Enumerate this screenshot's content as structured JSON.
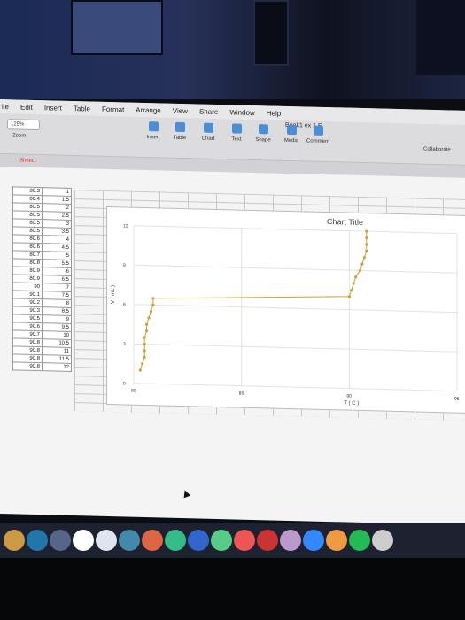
{
  "menu": [
    "ile",
    "Edit",
    "Insert",
    "Table",
    "Format",
    "Arrange",
    "View",
    "Share",
    "Window",
    "Help"
  ],
  "toolbar": {
    "zoom_value": "125%",
    "zoom_label": "Zoom",
    "doc_title": "Book1 ex 1 F",
    "buttons": [
      "Insert",
      "Table",
      "Chart",
      "Text",
      "Shape",
      "Media",
      "Comment"
    ],
    "collaborate": "Collaborate"
  },
  "sheet_tab": "Sheet1",
  "table": {
    "rows": [
      [
        "80.3",
        "1"
      ],
      [
        "80.4",
        "1.5"
      ],
      [
        "80.5",
        "2"
      ],
      [
        "80.5",
        "2.5"
      ],
      [
        "80.5",
        "3"
      ],
      [
        "80.5",
        "3.5"
      ],
      [
        "80.6",
        "4"
      ],
      [
        "80.6",
        "4.5"
      ],
      [
        "80.7",
        "5"
      ],
      [
        "80.8",
        "5.5"
      ],
      [
        "80.9",
        "6"
      ],
      [
        "80.9",
        "6.5"
      ],
      [
        "90",
        "7"
      ],
      [
        "90.1",
        "7.5"
      ],
      [
        "90.2",
        "8"
      ],
      [
        "90.3",
        "8.5"
      ],
      [
        "90.5",
        "9"
      ],
      [
        "90.6",
        "9.5"
      ],
      [
        "90.7",
        "10"
      ],
      [
        "90.8",
        "10.5"
      ],
      [
        "90.8",
        "11"
      ],
      [
        "90.8",
        "11.5"
      ],
      [
        "90.8",
        "12"
      ]
    ]
  },
  "chart_data": {
    "type": "line",
    "title": "Chart Title",
    "xlabel": "T ( C )",
    "ylabel": "V ( mL )",
    "xlim": [
      80,
      95
    ],
    "ylim": [
      0,
      12
    ],
    "xticks": [
      "80",
      "85",
      "90",
      "95"
    ],
    "yticks": [
      "0",
      "3",
      "6",
      "9",
      "12"
    ],
    "series": [
      {
        "color": "#c9a23a",
        "x": [
          80.3,
          80.4,
          80.5,
          80.5,
          80.5,
          80.5,
          80.6,
          80.6,
          80.7,
          80.8,
          80.9,
          80.9,
          90,
          90.1,
          90.2,
          90.3,
          90.5,
          90.6,
          90.7,
          90.8,
          90.8,
          90.8,
          90.8
        ],
        "y": [
          1,
          1.5,
          2,
          2.5,
          3,
          3.5,
          4,
          4.5,
          5,
          5.5,
          6,
          6.5,
          7,
          7.5,
          8,
          8.5,
          9,
          9.5,
          10,
          10.5,
          11,
          11.5,
          12
        ]
      }
    ]
  }
}
